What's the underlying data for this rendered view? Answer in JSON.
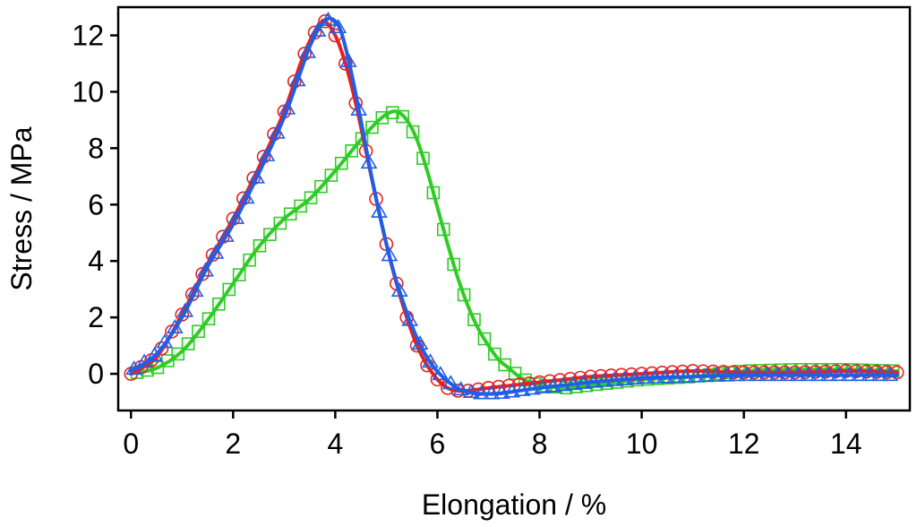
{
  "chart_data": {
    "type": "line",
    "title": "",
    "xlabel": "Elongation / %",
    "ylabel": "Stress / MPa",
    "xlim": [
      -0.25,
      15.25
    ],
    "ylim": [
      -1.3,
      13.0
    ],
    "xticks": [
      0,
      2,
      4,
      6,
      8,
      10,
      12,
      14
    ],
    "yticks": [
      0,
      2,
      4,
      6,
      8,
      10,
      12
    ],
    "xtick_labels": [
      "0",
      "2",
      "4",
      "6",
      "8",
      "10",
      "12",
      "14"
    ],
    "ytick_labels": [
      "0",
      "2",
      "4",
      "6",
      "8",
      "10",
      "12"
    ],
    "legend": "none",
    "series": [
      {
        "name": "red-circles",
        "color": "#e8211d",
        "marker": "circle",
        "x": [
          0,
          0.5,
          1,
          1.5,
          2,
          2.5,
          3,
          3.3,
          3.5,
          3.7,
          3.8,
          4,
          4.2,
          4.4,
          4.6,
          4.8,
          5,
          5.2,
          5.4,
          5.6,
          5.8,
          6,
          6.2,
          6.4,
          6.6,
          7,
          7.5,
          8,
          8.5,
          9,
          10,
          11,
          12,
          13,
          14,
          15
        ],
        "y": [
          0,
          0.6,
          2.1,
          3.9,
          5.5,
          7.3,
          9.3,
          10.9,
          11.8,
          12.4,
          12.5,
          12.0,
          11.0,
          9.6,
          7.9,
          6.2,
          4.6,
          3.2,
          2.0,
          1.0,
          0.3,
          -0.2,
          -0.5,
          -0.6,
          -0.6,
          -0.5,
          -0.4,
          -0.3,
          -0.2,
          -0.1,
          0,
          0.1,
          0.05,
          0.05,
          0.1,
          0.05
        ]
      },
      {
        "name": "blue-triangles",
        "color": "#1f5ee8",
        "marker": "triangle",
        "x": [
          0,
          0.5,
          1,
          1.5,
          2,
          2.5,
          3,
          3.3,
          3.5,
          3.7,
          3.9,
          4.1,
          4.3,
          4.5,
          4.7,
          4.9,
          5.1,
          5.3,
          5.5,
          5.7,
          5.9,
          6.1,
          6.3,
          6.5,
          6.8,
          7.2,
          7.6,
          8,
          8.5,
          9,
          10,
          11,
          12,
          13,
          14,
          15
        ],
        "y": [
          0.1,
          0.7,
          2.0,
          3.8,
          5.3,
          7.1,
          9.1,
          10.6,
          11.6,
          12.3,
          12.6,
          12.2,
          10.8,
          9.0,
          7.1,
          5.4,
          3.9,
          2.7,
          1.7,
          0.9,
          0.3,
          -0.1,
          -0.4,
          -0.6,
          -0.7,
          -0.7,
          -0.6,
          -0.5,
          -0.4,
          -0.3,
          -0.15,
          -0.1,
          -0.05,
          -0.05,
          -0.05,
          -0.05
        ]
      },
      {
        "name": "green-squares",
        "color": "#2ecc24",
        "marker": "square",
        "x": [
          0,
          0.5,
          1,
          1.5,
          2,
          2.5,
          3,
          3.5,
          4,
          4.5,
          4.8,
          5,
          5.2,
          5.4,
          5.6,
          5.8,
          6,
          6.2,
          6.4,
          6.6,
          6.8,
          7,
          7.2,
          7.4,
          7.6,
          7.8,
          8,
          8.5,
          9,
          9.5,
          10,
          11,
          12,
          13,
          14,
          15
        ],
        "y": [
          0,
          0.2,
          0.8,
          1.9,
          3.2,
          4.5,
          5.5,
          6.2,
          7.2,
          8.3,
          8.9,
          9.2,
          9.3,
          9.0,
          8.3,
          7.2,
          5.9,
          4.6,
          3.4,
          2.4,
          1.6,
          1.0,
          0.5,
          0.2,
          -0.1,
          -0.3,
          -0.4,
          -0.5,
          -0.4,
          -0.3,
          -0.2,
          -0.1,
          0.1,
          0.15,
          0.15,
          0.1
        ]
      }
    ]
  }
}
